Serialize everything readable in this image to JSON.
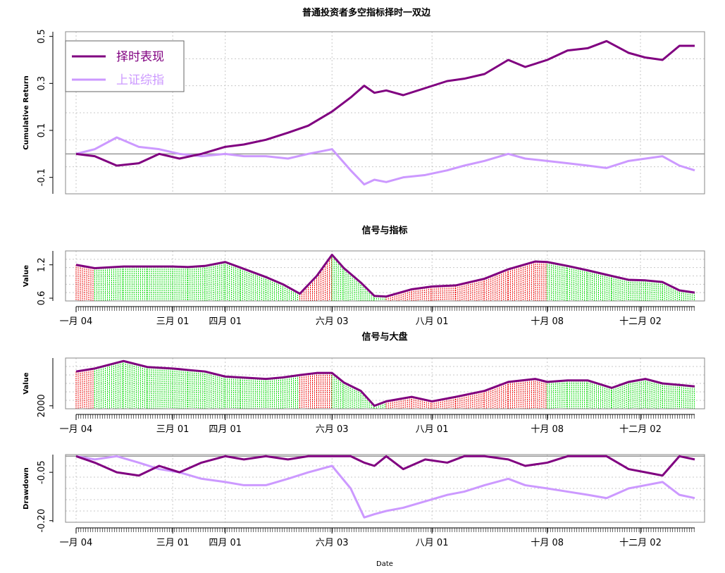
{
  "figure": {
    "title": "普通投资者多空指标择时一双边",
    "xlabel": "Date"
  },
  "colors": {
    "strategy": "#800080",
    "index": "#cc99ff",
    "long_fill": "#00dd00",
    "short_fill": "#ee0000",
    "zero_line": "#999999",
    "grid": "#c8c8c8",
    "frame": "#888888"
  },
  "x_ticks": [
    {
      "label": "一月 04",
      "date": "2016-01-04"
    },
    {
      "label": "三月 01",
      "date": "2016-03-01"
    },
    {
      "label": "四月 01",
      "date": "2016-04-01"
    },
    {
      "label": "六月 03",
      "date": "2016-06-03"
    },
    {
      "label": "八月 01",
      "date": "2016-08-01"
    },
    {
      "label": "十月 08",
      "date": "2016-10-08"
    },
    {
      "label": "十二月 02",
      "date": "2016-12-02"
    }
  ],
  "chart_data": [
    {
      "id": "cumret",
      "type": "line",
      "title": "",
      "ylabel": "Cumulative Return",
      "ylim": [
        -0.17,
        0.52
      ],
      "yticks": [
        -0.1,
        0.1,
        0.3,
        0.5
      ],
      "ytick_labels": [
        "-0.1",
        "0.1",
        "0.3",
        "0.5"
      ],
      "grid": true,
      "legend": "top-left",
      "series": [
        {
          "name": "择时表现",
          "color_key": "strategy",
          "x": [
            "2016-01-04",
            "2016-01-15",
            "2016-01-28",
            "2016-02-10",
            "2016-02-22",
            "2016-03-05",
            "2016-03-18",
            "2016-04-01",
            "2016-04-12",
            "2016-04-25",
            "2016-05-08",
            "2016-05-20",
            "2016-06-03",
            "2016-06-14",
            "2016-06-22",
            "2016-06-28",
            "2016-07-05",
            "2016-07-15",
            "2016-07-28",
            "2016-08-10",
            "2016-08-20",
            "2016-09-01",
            "2016-09-15",
            "2016-09-25",
            "2016-10-08",
            "2016-10-20",
            "2016-11-01",
            "2016-11-12",
            "2016-11-25",
            "2016-12-05",
            "2016-12-15",
            "2016-12-25",
            "2017-01-03"
          ],
          "values": [
            0.0,
            -0.01,
            -0.05,
            -0.04,
            0.0,
            -0.02,
            0.0,
            0.03,
            0.04,
            0.06,
            0.09,
            0.12,
            0.18,
            0.24,
            0.29,
            0.26,
            0.27,
            0.25,
            0.28,
            0.31,
            0.32,
            0.34,
            0.4,
            0.37,
            0.4,
            0.44,
            0.45,
            0.48,
            0.43,
            0.41,
            0.4,
            0.46,
            0.46
          ]
        },
        {
          "name": "上证综指",
          "color_key": "index",
          "x": [
            "2016-01-04",
            "2016-01-15",
            "2016-01-28",
            "2016-02-10",
            "2016-02-22",
            "2016-03-05",
            "2016-03-18",
            "2016-04-01",
            "2016-04-12",
            "2016-04-25",
            "2016-05-08",
            "2016-05-20",
            "2016-06-03",
            "2016-06-14",
            "2016-06-22",
            "2016-06-28",
            "2016-07-05",
            "2016-07-15",
            "2016-07-28",
            "2016-08-10",
            "2016-08-20",
            "2016-09-01",
            "2016-09-15",
            "2016-09-25",
            "2016-10-08",
            "2016-10-20",
            "2016-11-01",
            "2016-11-12",
            "2016-11-25",
            "2016-12-05",
            "2016-12-15",
            "2016-12-25",
            "2017-01-03"
          ],
          "values": [
            0.0,
            0.02,
            0.07,
            0.03,
            0.02,
            0.0,
            -0.01,
            0.0,
            -0.01,
            -0.01,
            -0.02,
            0.0,
            0.02,
            -0.07,
            -0.13,
            -0.11,
            -0.12,
            -0.1,
            -0.09,
            -0.07,
            -0.05,
            -0.03,
            0.0,
            -0.02,
            -0.03,
            -0.04,
            -0.05,
            -0.06,
            -0.03,
            -0.02,
            -0.01,
            -0.05,
            -0.07
          ]
        }
      ]
    },
    {
      "id": "signal_indicator",
      "type": "area",
      "title": "信号与指标",
      "ylabel": "Value",
      "ylim": [
        0.55,
        1.45
      ],
      "yticks": [
        0.6,
        1.2
      ],
      "ytick_labels": [
        "0.6",
        "1.2"
      ],
      "grid": true,
      "x": [
        "2016-01-04",
        "2016-01-15",
        "2016-02-01",
        "2016-02-15",
        "2016-03-01",
        "2016-03-10",
        "2016-03-20",
        "2016-04-01",
        "2016-04-10",
        "2016-04-25",
        "2016-05-05",
        "2016-05-15",
        "2016-05-25",
        "2016-06-03",
        "2016-06-10",
        "2016-06-20",
        "2016-06-28",
        "2016-07-05",
        "2016-07-20",
        "2016-08-01",
        "2016-08-15",
        "2016-09-01",
        "2016-09-15",
        "2016-10-01",
        "2016-10-08",
        "2016-10-20",
        "2016-11-01",
        "2016-11-15",
        "2016-11-25",
        "2016-12-05",
        "2016-12-15",
        "2016-12-25",
        "2017-01-03"
      ],
      "values": [
        1.2,
        1.14,
        1.17,
        1.17,
        1.17,
        1.16,
        1.18,
        1.25,
        1.15,
        0.98,
        0.85,
        0.68,
        1.0,
        1.38,
        1.14,
        0.88,
        0.64,
        0.63,
        0.76,
        0.81,
        0.83,
        0.95,
        1.12,
        1.26,
        1.25,
        1.18,
        1.1,
        1.0,
        0.93,
        0.92,
        0.89,
        0.74,
        0.7
      ],
      "signal": [
        -1,
        1,
        1,
        1,
        1,
        1,
        1,
        1,
        1,
        1,
        1,
        -1,
        -1,
        1,
        1,
        1,
        1,
        -1,
        -1,
        -1,
        -1,
        -1,
        -1,
        -1,
        1,
        1,
        1,
        1,
        1,
        1,
        1,
        1,
        1
      ],
      "fill_rule": "signal 1 = long_fill, signal -1 = short_fill"
    },
    {
      "id": "signal_market",
      "type": "area",
      "title": "信号与大盘",
      "ylabel": "Value",
      "ylim": [
        1900,
        3600
      ],
      "yticks": [
        2000
      ],
      "ytick_labels": [
        "2000"
      ],
      "grid": true,
      "x": [
        "2016-01-04",
        "2016-01-15",
        "2016-02-01",
        "2016-02-15",
        "2016-03-01",
        "2016-03-10",
        "2016-03-20",
        "2016-04-01",
        "2016-04-10",
        "2016-04-25",
        "2016-05-05",
        "2016-05-15",
        "2016-05-25",
        "2016-06-03",
        "2016-06-10",
        "2016-06-20",
        "2016-06-28",
        "2016-07-05",
        "2016-07-20",
        "2016-08-01",
        "2016-08-15",
        "2016-09-01",
        "2016-09-15",
        "2016-10-01",
        "2016-10-08",
        "2016-10-20",
        "2016-11-01",
        "2016-11-15",
        "2016-11-25",
        "2016-12-05",
        "2016-12-15",
        "2016-12-25",
        "2017-01-03"
      ],
      "values": [
        3150,
        3250,
        3500,
        3300,
        3250,
        3200,
        3150,
        2980,
        2950,
        2900,
        2950,
        3030,
        3100,
        3100,
        2780,
        2500,
        2000,
        2150,
        2300,
        2150,
        2300,
        2500,
        2800,
        2900,
        2800,
        2850,
        2850,
        2600,
        2800,
        2900,
        2750,
        2700,
        2650
      ],
      "signal": [
        -1,
        1,
        1,
        1,
        1,
        1,
        1,
        1,
        1,
        1,
        1,
        -1,
        -1,
        1,
        1,
        1,
        1,
        -1,
        -1,
        -1,
        -1,
        -1,
        -1,
        -1,
        1,
        1,
        1,
        1,
        1,
        1,
        1,
        1,
        1
      ],
      "fill_rule": "signal 1 = long_fill, signal -1 = short_fill"
    },
    {
      "id": "drawdown",
      "type": "line",
      "title": "",
      "ylabel": "Drawdown",
      "ylim": [
        -0.205,
        0.005
      ],
      "yticks": [
        -0.2,
        -0.05
      ],
      "ytick_labels": [
        "-0.20",
        "-0.05"
      ],
      "grid": true,
      "series": [
        {
          "name": "择时表现",
          "color_key": "strategy",
          "x": [
            "2016-01-04",
            "2016-01-15",
            "2016-01-28",
            "2016-02-10",
            "2016-02-22",
            "2016-03-05",
            "2016-03-18",
            "2016-04-01",
            "2016-04-12",
            "2016-04-25",
            "2016-05-08",
            "2016-05-20",
            "2016-06-03",
            "2016-06-14",
            "2016-06-22",
            "2016-06-28",
            "2016-07-05",
            "2016-07-15",
            "2016-07-28",
            "2016-08-10",
            "2016-08-20",
            "2016-09-01",
            "2016-09-15",
            "2016-09-25",
            "2016-10-08",
            "2016-10-20",
            "2016-11-01",
            "2016-11-12",
            "2016-11-25",
            "2016-12-05",
            "2016-12-15",
            "2016-12-25",
            "2017-01-03"
          ],
          "values": [
            0.0,
            -0.02,
            -0.05,
            -0.06,
            -0.03,
            -0.05,
            -0.02,
            0.0,
            -0.01,
            0.0,
            -0.01,
            0.0,
            0.0,
            0.0,
            -0.02,
            -0.03,
            0.0,
            -0.04,
            -0.01,
            -0.02,
            0.0,
            0.0,
            -0.01,
            -0.03,
            -0.02,
            0.0,
            0.0,
            0.0,
            -0.04,
            -0.05,
            -0.06,
            0.0,
            -0.01
          ]
        },
        {
          "name": "上证综指",
          "color_key": "index",
          "x": [
            "2016-01-04",
            "2016-01-15",
            "2016-01-28",
            "2016-02-10",
            "2016-02-22",
            "2016-03-05",
            "2016-03-18",
            "2016-04-01",
            "2016-04-12",
            "2016-04-25",
            "2016-05-08",
            "2016-05-20",
            "2016-06-03",
            "2016-06-14",
            "2016-06-22",
            "2016-06-28",
            "2016-07-05",
            "2016-07-15",
            "2016-07-28",
            "2016-08-10",
            "2016-08-20",
            "2016-09-01",
            "2016-09-15",
            "2016-09-25",
            "2016-10-08",
            "2016-10-20",
            "2016-11-01",
            "2016-11-12",
            "2016-11-25",
            "2016-12-05",
            "2016-12-15",
            "2016-12-25",
            "2017-01-03"
          ],
          "values": [
            0.0,
            -0.01,
            0.0,
            -0.02,
            -0.04,
            -0.05,
            -0.07,
            -0.08,
            -0.09,
            -0.09,
            -0.07,
            -0.05,
            -0.03,
            -0.1,
            -0.19,
            -0.18,
            -0.17,
            -0.16,
            -0.14,
            -0.12,
            -0.11,
            -0.09,
            -0.07,
            -0.09,
            -0.1,
            -0.11,
            -0.12,
            -0.13,
            -0.1,
            -0.09,
            -0.08,
            -0.12,
            -0.13
          ]
        }
      ]
    }
  ]
}
